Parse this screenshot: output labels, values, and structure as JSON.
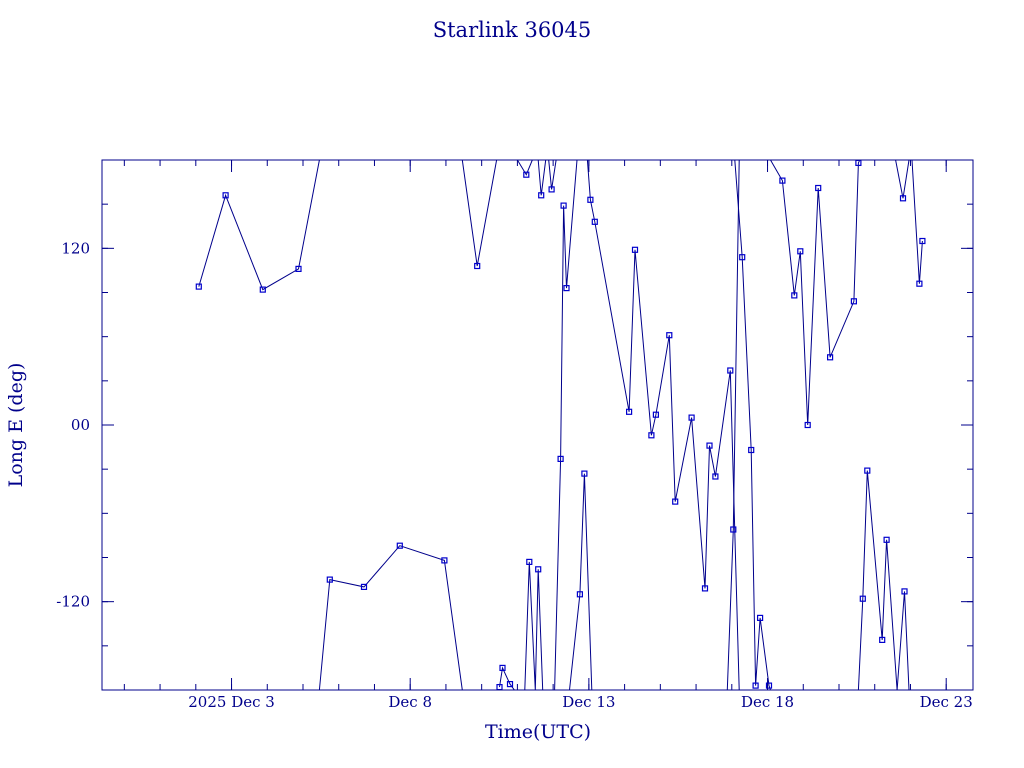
{
  "chart_data": {
    "type": "line",
    "title": "Starlink 36045",
    "xlabel": "Time(UTC)",
    "ylabel": "Long E (deg)",
    "x_unit": "days",
    "xlim": [
      "2025-11-29T09:00",
      "2025-12-23T18:00"
    ],
    "ylim": [
      -180,
      180
    ],
    "x_ticks": [
      {
        "x": "2025-12-03",
        "label": "2025 Dec  3"
      },
      {
        "x": "2025-12-08",
        "label": "Dec  8"
      },
      {
        "x": "2025-12-13",
        "label": "Dec 13"
      },
      {
        "x": "2025-12-18",
        "label": "Dec 18"
      },
      {
        "x": "2025-12-23",
        "label": "Dec 23"
      }
    ],
    "y_ticks": [
      {
        "y": 120,
        "label": "120"
      },
      {
        "y": 0,
        "label": "00"
      },
      {
        "y": -120,
        "label": "-120"
      }
    ],
    "grid": false,
    "colors": {
      "line": "#00008b",
      "marker": "#0000cd",
      "frame": "#00008b"
    },
    "series": [
      {
        "points": [
          [
            "2025-12-02T02:00",
            94
          ],
          [
            "2025-12-02T20:00",
            156
          ],
          [
            "2025-12-03T21:00",
            92
          ],
          [
            "2025-12-04T21:00",
            106
          ],
          [
            "2025-12-05T11:00",
            180
          ]
        ]
      },
      {
        "points": [
          [
            "2025-12-05T11:00",
            -180
          ],
          [
            "2025-12-05T18:00",
            -105
          ],
          [
            "2025-12-06T17:00",
            -110
          ],
          [
            "2025-12-07T17:00",
            -82
          ],
          [
            "2025-12-08T23:00",
            -92
          ],
          [
            "2025-12-09T11:00",
            -180
          ]
        ]
      },
      {
        "points": [
          [
            "2025-12-09T11:00",
            180
          ],
          [
            "2025-12-09T21:00",
            108
          ],
          [
            "2025-12-10T10:00",
            180
          ]
        ]
      },
      {
        "points": [
          [
            "2025-12-10T12:00",
            -178
          ],
          [
            "2025-12-10T14:00",
            -165
          ],
          [
            "2025-12-10T19:00",
            -176
          ],
          [
            "2025-12-10T22:00",
            -180
          ]
        ]
      },
      {
        "points": [
          [
            "2025-12-11T00:00",
            180
          ],
          [
            "2025-12-11T06:00",
            170
          ],
          [
            "2025-12-11T10:00",
            180
          ]
        ]
      },
      {
        "points": [
          [
            "2025-12-11T05:00",
            -180
          ],
          [
            "2025-12-11T08:00",
            -93
          ],
          [
            "2025-12-11T12:00",
            -180
          ],
          [
            "2025-12-11T14:00",
            -98
          ],
          [
            "2025-12-11T17:00",
            -180
          ]
        ]
      },
      {
        "points": [
          [
            "2025-12-11T14:00",
            180
          ],
          [
            "2025-12-11T16:00",
            156
          ],
          [
            "2025-12-11T19:00",
            180
          ]
        ]
      },
      {
        "points": [
          [
            "2025-12-11T21:00",
            180
          ],
          [
            "2025-12-11T23:00",
            160
          ],
          [
            "2025-12-12T02:00",
            180
          ]
        ]
      },
      {
        "points": [
          [
            "2025-12-12T01:00",
            -180
          ],
          [
            "2025-12-12T05:00",
            -23
          ],
          [
            "2025-12-12T07:00",
            149
          ],
          [
            "2025-12-12T09:00",
            93
          ],
          [
            "2025-12-12T16:00",
            180
          ]
        ]
      },
      {
        "points": [
          [
            "2025-12-12T11:00",
            -180
          ],
          [
            "2025-12-12T18:00",
            -115
          ],
          [
            "2025-12-12T21:00",
            -33
          ],
          [
            "2025-12-13T02:00",
            -180
          ]
        ]
      },
      {
        "points": [
          [
            "2025-12-12T23:00",
            180
          ],
          [
            "2025-12-13T01:00",
            153
          ],
          [
            "2025-12-13T04:00",
            138
          ],
          [
            "2025-12-14T03:00",
            9
          ],
          [
            "2025-12-14T07:00",
            119
          ],
          [
            "2025-12-14T18:00",
            -7
          ],
          [
            "2025-12-14T21:00",
            7
          ],
          [
            "2025-12-15T06:00",
            61
          ],
          [
            "2025-12-15T10:00",
            -52
          ],
          [
            "2025-12-15T21:00",
            5
          ],
          [
            "2025-12-16T06:00",
            -111
          ],
          [
            "2025-12-16T09:00",
            -14
          ],
          [
            "2025-12-16T13:00",
            -35
          ],
          [
            "2025-12-16T23:00",
            37
          ],
          [
            "2025-12-17T05:00",
            -180
          ]
        ]
      },
      {
        "points": [
          [
            "2025-12-16T21:00",
            -180
          ],
          [
            "2025-12-17T01:00",
            -71
          ],
          [
            "2025-12-17T05:00",
            180
          ]
        ]
      },
      {
        "points": [
          [
            "2025-12-17T02:00",
            180
          ],
          [
            "2025-12-17T07:00",
            114
          ],
          [
            "2025-12-17T13:00",
            -17
          ],
          [
            "2025-12-17T16:00",
            -177
          ],
          [
            "2025-12-17T19:00",
            -131
          ],
          [
            "2025-12-18T01:00",
            -177
          ],
          [
            "2025-12-18T02:00",
            -180
          ]
        ]
      },
      {
        "points": [
          [
            "2025-12-18T02:00",
            180
          ],
          [
            "2025-12-18T10:00",
            166
          ],
          [
            "2025-12-18T18:00",
            88
          ],
          [
            "2025-12-18T22:00",
            118
          ],
          [
            "2025-12-19T03:00",
            0
          ],
          [
            "2025-12-19T10:00",
            161
          ],
          [
            "2025-12-19T18:00",
            46
          ],
          [
            "2025-12-20T10:00",
            84
          ],
          [
            "2025-12-20T13:00",
            178
          ],
          [
            "2025-12-20T14:00",
            180
          ]
        ]
      },
      {
        "points": [
          [
            "2025-12-20T13:00",
            -180
          ],
          [
            "2025-12-20T16:00",
            -118
          ],
          [
            "2025-12-20T19:00",
            -31
          ],
          [
            "2025-12-21T05:00",
            -146
          ],
          [
            "2025-12-21T08:00",
            -78
          ],
          [
            "2025-12-21T15:00",
            -180
          ]
        ]
      },
      {
        "points": [
          [
            "2025-12-21T15:00",
            -180
          ],
          [
            "2025-12-21T20:00",
            -113
          ],
          [
            "2025-12-21T23:00",
            -180
          ]
        ]
      },
      {
        "points": [
          [
            "2025-12-21T14:00",
            180
          ],
          [
            "2025-12-21T19:00",
            154
          ],
          [
            "2025-12-21T23:00",
            180
          ]
        ]
      },
      {
        "points": [
          [
            "2025-12-22T01:00",
            180
          ],
          [
            "2025-12-22T06:00",
            96
          ],
          [
            "2025-12-22T08:00",
            125
          ]
        ]
      }
    ]
  }
}
